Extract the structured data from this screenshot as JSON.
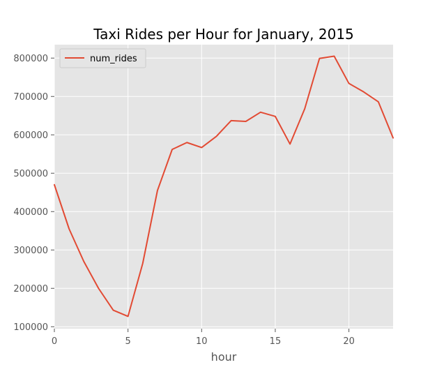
{
  "chart_data": {
    "type": "line",
    "title": "Taxi Rides per Hour for January, 2015",
    "xlabel": "hour",
    "ylabel": "",
    "xlim": [
      0,
      23
    ],
    "ylim": [
      95000,
      835000
    ],
    "xticks": [
      0,
      5,
      10,
      15,
      20
    ],
    "yticks": [
      100000,
      200000,
      300000,
      400000,
      500000,
      600000,
      700000,
      800000
    ],
    "xtick_labels": [
      "0",
      "5",
      "10",
      "15",
      "20"
    ],
    "ytick_labels": [
      "100000",
      "200000",
      "300000",
      "400000",
      "500000",
      "600000",
      "700000",
      "800000"
    ],
    "grid": true,
    "legend_position": "top-left",
    "colors": {
      "plot_bg": "#e5e5e5",
      "grid": "#ffffff",
      "line": "#e24a33",
      "text": "#000000",
      "tick_text": "#555555"
    },
    "x": [
      0,
      1,
      2,
      3,
      4,
      5,
      6,
      7,
      8,
      9,
      10,
      11,
      12,
      13,
      14,
      15,
      16,
      17,
      18,
      19,
      20,
      21,
      22,
      23
    ],
    "series": [
      {
        "name": "num_rides",
        "values": [
          470000,
          355000,
          270000,
          200000,
          143000,
          127000,
          265000,
          455000,
          562000,
          580000,
          567000,
          596000,
          637000,
          635000,
          659000,
          648000,
          576000,
          668000,
          799000,
          805000,
          734000,
          712000,
          686000,
          592000
        ]
      }
    ]
  }
}
